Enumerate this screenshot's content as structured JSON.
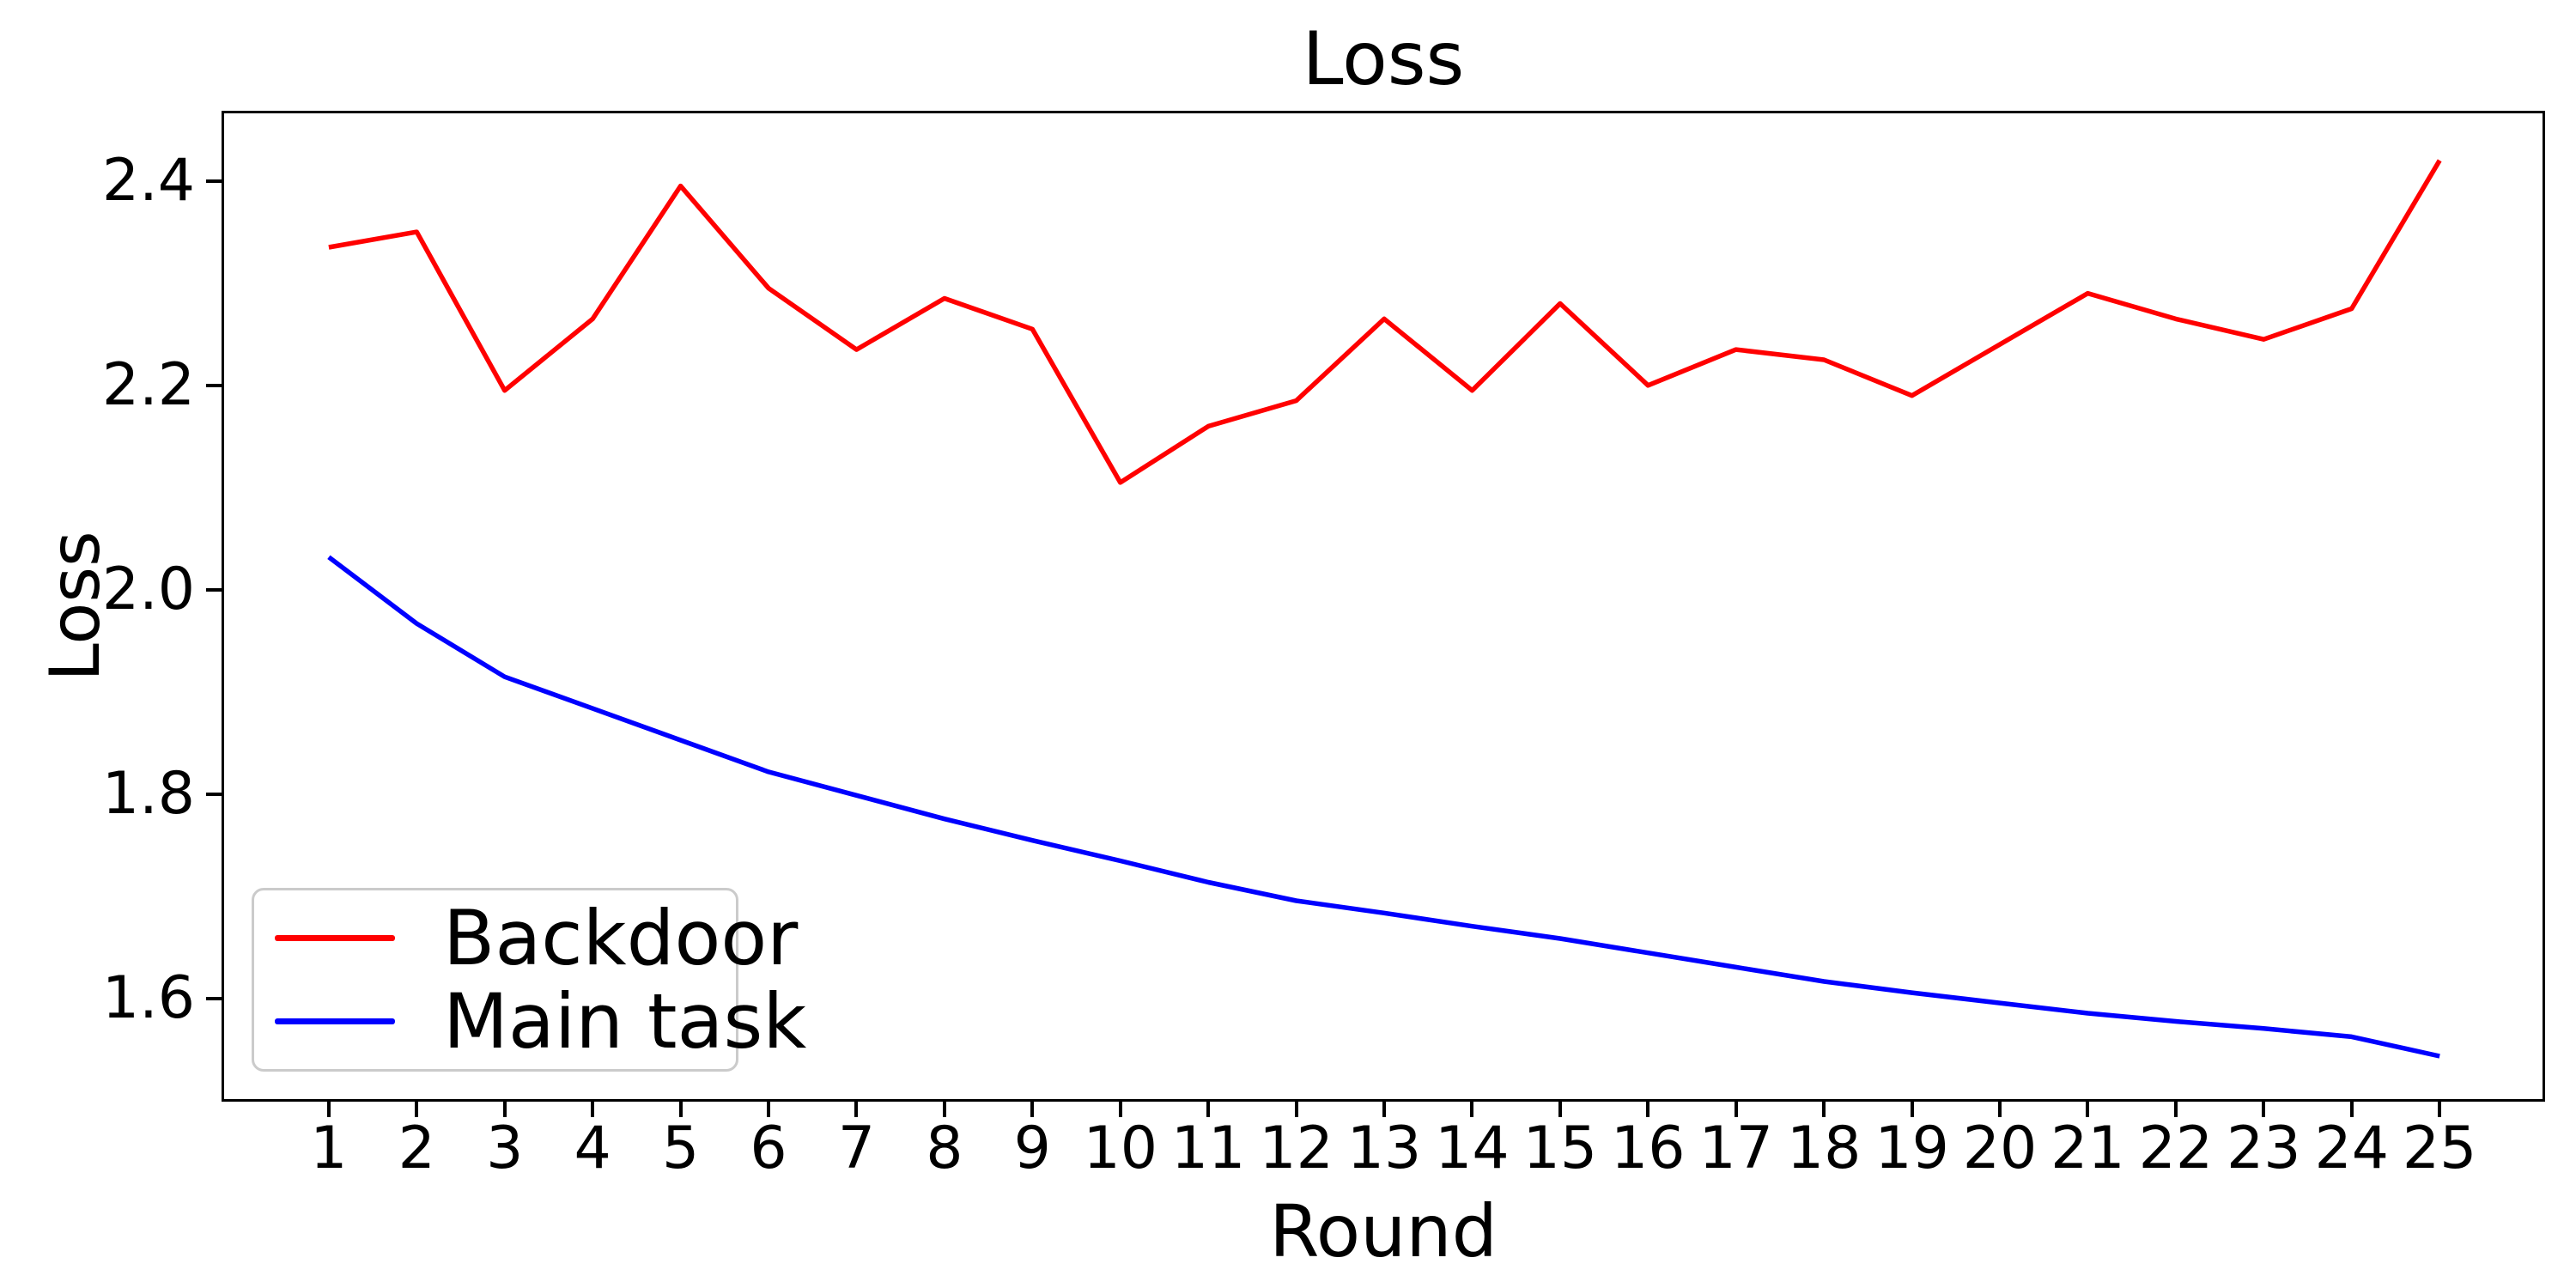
{
  "figure": {
    "background": "#ffffff",
    "axis_color": "#000000"
  },
  "chart_data": {
    "type": "line",
    "title": "Loss",
    "xlabel": "Round",
    "ylabel": "Loss",
    "x": [
      1,
      2,
      3,
      4,
      5,
      6,
      7,
      8,
      9,
      10,
      11,
      12,
      13,
      14,
      15,
      16,
      17,
      18,
      19,
      20,
      21,
      22,
      23,
      24,
      25
    ],
    "x_tick_labels": [
      "1",
      "2",
      "3",
      "4",
      "5",
      "6",
      "7",
      "8",
      "9",
      "10",
      "11",
      "12",
      "13",
      "14",
      "15",
      "16",
      "17",
      "18",
      "19",
      "20",
      "21",
      "22",
      "23",
      "24",
      "25"
    ],
    "y_ticks": [
      1.6,
      1.8,
      2.0,
      2.2,
      2.4
    ],
    "y_tick_labels": [
      "1.6",
      "1.8",
      "2.0",
      "2.2",
      "2.4"
    ],
    "xlim": [
      -0.19,
      26.17
    ],
    "ylim": [
      1.502,
      2.466
    ],
    "grid": false,
    "legend_position": "lower left",
    "line_width": 5.5,
    "series": [
      {
        "name": "Backdoor",
        "color": "#ff0000",
        "values": [
          2.335,
          2.35,
          2.195,
          2.265,
          2.395,
          2.295,
          2.235,
          2.285,
          2.255,
          2.105,
          2.16,
          2.185,
          2.265,
          2.195,
          2.28,
          2.2,
          2.235,
          2.225,
          2.19,
          2.24,
          2.29,
          2.265,
          2.245,
          2.275,
          2.42
        ]
      },
      {
        "name": "Main task",
        "color": "#0000ff",
        "values": [
          2.032,
          1.967,
          1.915,
          1.884,
          1.853,
          1.822,
          1.799,
          1.776,
          1.755,
          1.735,
          1.714,
          1.696,
          1.684,
          1.671,
          1.659,
          1.645,
          1.631,
          1.617,
          1.606,
          1.596,
          1.586,
          1.578,
          1.571,
          1.563,
          1.544
        ]
      }
    ]
  }
}
